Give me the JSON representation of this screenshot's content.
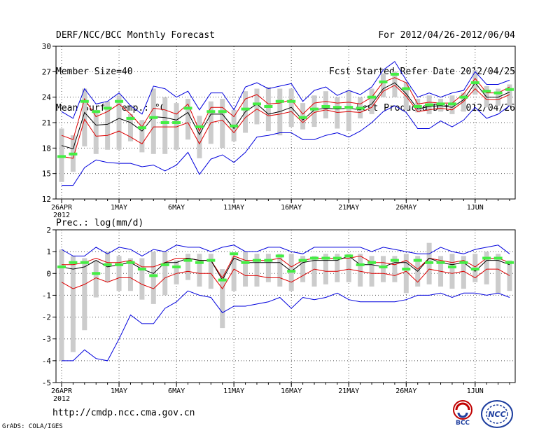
{
  "header": {
    "title": "DERF/NCC/BCC Monthly Forecast",
    "member_size": "Member Size=40",
    "variable": "Mean Surf. Temp.: °C",
    "period": "For 2012/04/26-2012/06/04",
    "started_refer": "Fcst Started Refer Date 2012/04/25",
    "produced": "Fcst Produced Date 2012/04/26"
  },
  "footer": {
    "url": "http://cmdp.ncc.cma.gov.cn",
    "credit": "GrADS: COLA/IGES",
    "logo_bcc": "BCC",
    "logo_ncc": "NCC"
  },
  "colors": {
    "ensemble_mean": "#000000",
    "upper_bound": "#0000dd",
    "lower_bound": "#dd0000",
    "spread_bar": "#cccccc",
    "observed_marker": "#44ee44"
  },
  "chart_data": [
    {
      "type": "line",
      "title": "Mean Surf. Temp.: °C",
      "ylim": [
        12,
        30
      ],
      "yticks": [
        12,
        15,
        18,
        21,
        24,
        27,
        30
      ],
      "xtick_labels": [
        {
          "day": 0,
          "label": "26APR",
          "sub": "2012"
        },
        {
          "day": 5,
          "label": "1MAY"
        },
        {
          "day": 10,
          "label": "6MAY"
        },
        {
          "day": 15,
          "label": "11MAY"
        },
        {
          "day": 20,
          "label": "16MAY"
        },
        {
          "day": 25,
          "label": "21MAY"
        },
        {
          "day": 30,
          "label": "26MAY"
        },
        {
          "day": 36,
          "label": "1JUN"
        }
      ],
      "x": [
        0,
        1,
        2,
        3,
        4,
        5,
        6,
        7,
        8,
        9,
        10,
        11,
        12,
        13,
        14,
        15,
        16,
        17,
        18,
        19,
        20,
        21,
        22,
        23,
        24,
        25,
        26,
        27,
        28,
        29,
        30,
        31,
        32,
        33,
        34,
        35,
        36,
        37,
        38,
        39
      ],
      "series": [
        {
          "name": "max",
          "color": "#0000dd",
          "values": [
            22.3,
            21.5,
            25.0,
            23.2,
            23.5,
            24.5,
            23.0,
            22.0,
            25.3,
            25.0,
            24.0,
            24.7,
            22.5,
            24.5,
            24.5,
            22.5,
            25.2,
            25.7,
            25.0,
            25.3,
            25.6,
            23.5,
            24.8,
            25.2,
            24.2,
            24.8,
            24.3,
            25.2,
            27.2,
            28.2,
            26.0,
            24.0,
            24.5,
            24.0,
            24.5,
            24.8,
            27.0,
            25.5,
            25.5,
            26.0
          ]
        },
        {
          "name": "upper",
          "color": "#dd0000",
          "values": [
            19.5,
            19.0,
            23.8,
            21.7,
            22.3,
            23.2,
            22.0,
            20.5,
            22.7,
            22.5,
            22.0,
            23.2,
            20.0,
            22.8,
            22.8,
            21.7,
            23.8,
            24.3,
            23.2,
            23.3,
            23.7,
            22.0,
            23.3,
            23.5,
            23.3,
            23.4,
            23.2,
            24.0,
            25.8,
            26.3,
            25.7,
            23.2,
            23.4,
            23.3,
            23.3,
            24.4,
            26.2,
            24.5,
            24.5,
            25.2
          ]
        },
        {
          "name": "mean",
          "color": "#000000",
          "values": [
            18.3,
            17.9,
            22.2,
            20.7,
            20.8,
            21.5,
            21.0,
            20.0,
            21.7,
            21.6,
            21.3,
            22.2,
            19.6,
            22.0,
            22.0,
            20.3,
            22.3,
            23.2,
            22.0,
            22.3,
            22.8,
            21.3,
            22.5,
            22.7,
            22.6,
            22.7,
            22.5,
            23.2,
            25.0,
            25.7,
            24.4,
            22.6,
            22.9,
            23.0,
            22.8,
            23.7,
            25.7,
            24.0,
            24.0,
            24.6
          ]
        },
        {
          "name": "lower",
          "color": "#dd0000",
          "values": [
            17.0,
            16.8,
            21.4,
            19.4,
            19.5,
            20.0,
            19.3,
            18.5,
            20.5,
            20.5,
            20.5,
            21.0,
            18.5,
            21.0,
            21.3,
            19.8,
            21.6,
            22.6,
            21.8,
            22.0,
            22.3,
            21.0,
            22.2,
            22.5,
            22.2,
            22.3,
            22.2,
            22.8,
            24.7,
            25.4,
            24.1,
            22.3,
            22.5,
            22.7,
            22.5,
            23.5,
            25.0,
            23.7,
            23.7,
            24.3
          ]
        },
        {
          "name": "min",
          "color": "#0000dd",
          "values": [
            13.6,
            13.6,
            15.7,
            16.6,
            16.3,
            16.2,
            16.2,
            15.8,
            16.0,
            15.3,
            16.0,
            17.5,
            14.9,
            16.7,
            17.2,
            16.3,
            17.5,
            19.3,
            19.5,
            19.8,
            19.8,
            19.0,
            19.0,
            19.5,
            19.8,
            19.3,
            20.0,
            21.0,
            22.3,
            23.0,
            22.2,
            20.3,
            20.3,
            21.2,
            20.5,
            21.3,
            22.8,
            21.5,
            22.0,
            23.0
          ]
        }
      ],
      "bars": {
        "name": "spread",
        "low": [
          14.0,
          15.2,
          18.2,
          17.3,
          17.8,
          17.8,
          18.8,
          17.5,
          17.3,
          17.3,
          17.8,
          19.0,
          16.8,
          18.5,
          18.0,
          18.8,
          19.8,
          20.8,
          20.0,
          19.5,
          20.5,
          20.2,
          20.5,
          21.5,
          20.3,
          20.0,
          21.5,
          22.0,
          24.0,
          24.0,
          22.5,
          22.2,
          22.0,
          22.3,
          22.0,
          22.3,
          24.3,
          22.8,
          23.0,
          23.0
        ],
        "high": [
          20.3,
          19.5,
          25.0,
          22.5,
          23.5,
          24.2,
          22.0,
          21.3,
          25.0,
          24.0,
          23.3,
          23.8,
          21.8,
          23.5,
          23.8,
          22.5,
          24.7,
          25.0,
          25.2,
          25.0,
          25.0,
          23.3,
          24.2,
          24.7,
          24.0,
          24.8,
          24.0,
          25.0,
          26.8,
          27.0,
          25.8,
          23.8,
          24.2,
          23.8,
          24.2,
          24.5,
          27.2,
          25.3,
          25.0,
          25.5
        ]
      },
      "observed": [
        17.0,
        17.3,
        23.5,
        22.3,
        22.7,
        23.5,
        21.5,
        20.4,
        21.6,
        21.0,
        21.0,
        22.7,
        20.5,
        22.3,
        22.3,
        20.6,
        22.6,
        23.2,
        22.9,
        23.5,
        23.5,
        21.6,
        22.6,
        22.9,
        22.8,
        22.8,
        22.7,
        24.0,
        25.8,
        26.7,
        25.0,
        22.9,
        23.1,
        23.2,
        23.2,
        24.0,
        25.7,
        24.7,
        24.5,
        24.9
      ]
    },
    {
      "type": "line",
      "title": "Prec.: log(mm/d)",
      "ylim": [
        -5,
        2
      ],
      "yticks": [
        -5,
        -4,
        -3,
        -2,
        -1,
        0,
        1,
        2
      ],
      "xtick_labels": [
        {
          "day": 0,
          "label": "26APR",
          "sub": "2012"
        },
        {
          "day": 5,
          "label": "1MAY"
        },
        {
          "day": 10,
          "label": "6MAY"
        },
        {
          "day": 15,
          "label": "11MAY"
        },
        {
          "day": 20,
          "label": "16MAY"
        },
        {
          "day": 25,
          "label": "21MAY"
        },
        {
          "day": 30,
          "label": "26MAY"
        },
        {
          "day": 36,
          "label": "1JUN"
        }
      ],
      "x": [
        0,
        1,
        2,
        3,
        4,
        5,
        6,
        7,
        8,
        9,
        10,
        11,
        12,
        13,
        14,
        15,
        16,
        17,
        18,
        19,
        20,
        21,
        22,
        23,
        24,
        25,
        26,
        27,
        28,
        29,
        30,
        31,
        32,
        33,
        34,
        35,
        36,
        37,
        38,
        39
      ],
      "series": [
        {
          "name": "max",
          "color": "#0000dd",
          "values": [
            1.1,
            0.8,
            0.8,
            1.2,
            0.9,
            1.2,
            1.1,
            0.8,
            1.1,
            1.0,
            1.3,
            1.2,
            1.2,
            1.0,
            1.2,
            1.3,
            1.0,
            1.0,
            1.2,
            1.2,
            1.0,
            0.9,
            1.2,
            1.2,
            1.2,
            1.2,
            1.2,
            1.0,
            1.2,
            1.1,
            1.0,
            0.9,
            0.9,
            1.2,
            1.0,
            0.9,
            1.1,
            1.2,
            1.3,
            0.9
          ]
        },
        {
          "name": "upper",
          "color": "#dd0000",
          "values": [
            0.4,
            0.4,
            0.5,
            0.7,
            0.5,
            0.5,
            0.6,
            0.3,
            0.3,
            0.5,
            0.7,
            0.7,
            0.6,
            0.6,
            -0.2,
            0.8,
            0.6,
            0.6,
            0.6,
            0.7,
            0.3,
            0.6,
            0.7,
            0.7,
            0.7,
            0.7,
            0.8,
            0.5,
            0.5,
            0.4,
            0.6,
            0.2,
            0.7,
            0.6,
            0.5,
            0.6,
            0.3,
            0.7,
            0.7,
            0.5
          ]
        },
        {
          "name": "mean",
          "color": "#000000",
          "values": [
            0.3,
            0.2,
            0.3,
            0.6,
            0.3,
            0.4,
            0.5,
            0.2,
            0.0,
            0.5,
            0.5,
            0.7,
            0.6,
            0.6,
            -0.3,
            0.7,
            0.5,
            0.5,
            0.5,
            0.5,
            0.1,
            0.5,
            0.6,
            0.6,
            0.6,
            0.8,
            0.4,
            0.4,
            0.3,
            0.5,
            0.5,
            0.1,
            0.7,
            0.5,
            0.4,
            0.5,
            0.1,
            0.6,
            0.6,
            0.4
          ]
        },
        {
          "name": "lower",
          "color": "#dd0000",
          "values": [
            -0.4,
            -0.7,
            -0.5,
            -0.2,
            -0.4,
            -0.2,
            -0.2,
            -0.5,
            -0.7,
            -0.2,
            0.0,
            0.1,
            0.0,
            0.0,
            -0.7,
            0.2,
            -0.1,
            -0.1,
            -0.2,
            -0.2,
            -0.4,
            -0.1,
            0.2,
            0.1,
            0.1,
            0.2,
            0.1,
            0.0,
            0.0,
            -0.1,
            0.1,
            -0.4,
            0.2,
            0.1,
            0.0,
            0.1,
            -0.2,
            0.2,
            0.2,
            -0.1
          ]
        },
        {
          "name": "min",
          "color": "#0000dd",
          "values": [
            -4.0,
            -4.0,
            -3.5,
            -3.9,
            -4.0,
            -3.0,
            -1.9,
            -2.3,
            -2.3,
            -1.6,
            -1.3,
            -0.8,
            -1.0,
            -1.1,
            -1.8,
            -1.5,
            -1.5,
            -1.4,
            -1.3,
            -1.1,
            -1.6,
            -1.1,
            -1.2,
            -1.1,
            -0.9,
            -1.2,
            -1.3,
            -1.3,
            -1.3,
            -1.3,
            -1.2,
            -1.0,
            -1.0,
            -0.9,
            -1.1,
            -0.9,
            -0.9,
            -1.0,
            -0.9,
            -1.1
          ]
        }
      ],
      "bars": {
        "name": "spread",
        "low": [
          -4.0,
          -3.6,
          -2.6,
          -1.1,
          -0.4,
          -0.8,
          -0.8,
          -1.2,
          -1.4,
          -1.0,
          -0.5,
          -0.3,
          -0.6,
          -0.7,
          -2.5,
          -0.8,
          -0.6,
          -0.6,
          -0.4,
          -0.6,
          -0.8,
          -0.4,
          -0.6,
          -0.5,
          -0.4,
          -0.4,
          -0.6,
          -0.6,
          -0.4,
          -0.4,
          -0.9,
          -0.6,
          -0.5,
          -0.6,
          -0.7,
          -0.7,
          -0.4,
          -0.5,
          -0.9,
          -0.8
        ],
        "high": [
          1.1,
          0.8,
          0.7,
          0.6,
          1.0,
          0.8,
          0.7,
          0.7,
          1.0,
          1.0,
          0.6,
          0.9,
          0.9,
          0.9,
          0.2,
          0.8,
          1.0,
          0.9,
          0.9,
          0.9,
          0.9,
          0.8,
          0.8,
          0.9,
          0.9,
          0.9,
          0.9,
          0.8,
          0.8,
          0.8,
          0.9,
          0.8,
          1.4,
          0.8,
          0.9,
          0.8,
          0.9,
          1.0,
          0.9,
          0.6
        ]
      },
      "observed": [
        0.3,
        0.5,
        0.5,
        0.0,
        0.4,
        0.4,
        0.5,
        0.2,
        -0.1,
        0.4,
        0.3,
        0.6,
        0.5,
        0.6,
        -0.3,
        0.9,
        0.5,
        0.6,
        0.6,
        0.8,
        0.1,
        0.6,
        0.7,
        0.7,
        0.7,
        0.8,
        0.4,
        0.5,
        0.3,
        0.6,
        0.2,
        0.6,
        0.5,
        0.5,
        0.3,
        0.5,
        0.2,
        0.7,
        0.7,
        0.5
      ]
    }
  ]
}
